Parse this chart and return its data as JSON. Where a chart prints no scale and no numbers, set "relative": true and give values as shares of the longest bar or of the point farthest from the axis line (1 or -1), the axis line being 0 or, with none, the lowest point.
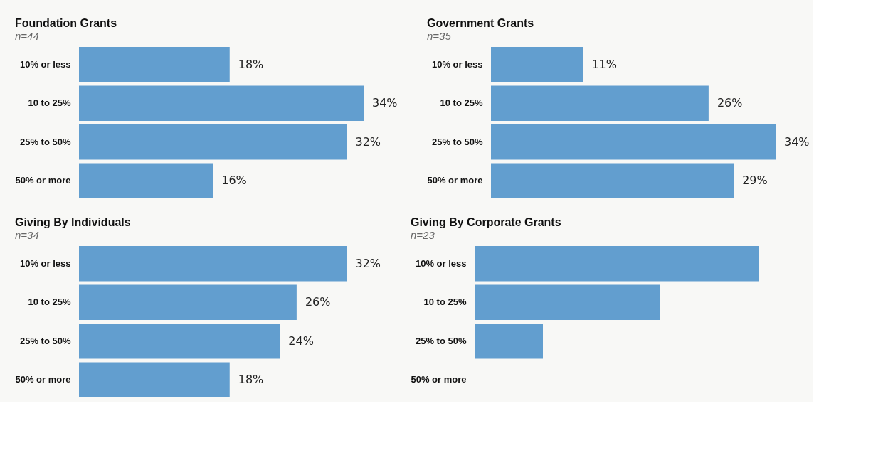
{
  "chart_data": [
    {
      "type": "bar",
      "orientation": "horizontal",
      "title": "Foundation Grants",
      "subtitle": "n=44",
      "categories": [
        "10% or less",
        "10 to 25%",
        "25% to 50%",
        "50% or more"
      ],
      "values": [
        18,
        34,
        32,
        16
      ],
      "value_labels": [
        "18%",
        "34%",
        "32%",
        "16%"
      ],
      "color": "#629ecf",
      "tick_labels": "y"
    },
    {
      "type": "bar",
      "orientation": "horizontal",
      "title": "Government Grants",
      "subtitle": "n=35",
      "categories": [
        "10% or less",
        "10 to 25%",
        "25% to 50%",
        "50% or more"
      ],
      "values": [
        11,
        26,
        34,
        29
      ],
      "value_labels": [
        "11%",
        "26%",
        "34%",
        "29%"
      ],
      "color": "#629ecf",
      "tick_labels": "y"
    },
    {
      "type": "bar",
      "orientation": "horizontal",
      "title": "Giving By Individuals",
      "subtitle": "n=34",
      "categories": [
        "10% or less",
        "10 to 25%",
        "25% to 50%",
        "50% or more"
      ],
      "values": [
        32,
        26,
        24,
        18
      ],
      "value_labels": [
        "32%",
        "26%",
        "24%",
        "18%"
      ],
      "color": "#629ecf",
      "tick_labels": "y"
    },
    {
      "type": "bar",
      "orientation": "horizontal",
      "title": "Giving By Corporate Grants",
      "subtitle": "n=23",
      "categories": [
        "10% or less",
        "10 to 25%",
        "25% to 50%",
        "50% or more"
      ],
      "values": [
        1,
        0.65,
        0.24,
        null
      ],
      "relative": true,
      "color": "#629ecf",
      "tick_labels": "y"
    }
  ]
}
